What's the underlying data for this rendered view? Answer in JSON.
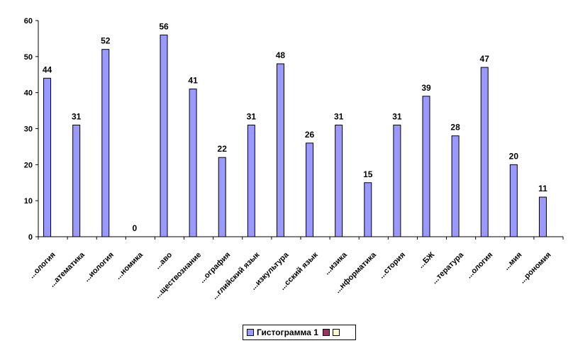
{
  "chart_data": {
    "type": "bar",
    "categories": [
      "...ология",
      "...атематика",
      "...иология",
      "...номика",
      "...аво",
      "...ществознание",
      "...ография",
      "...глийский язык",
      "...изкультура",
      "...сский язык",
      "...изика",
      "...нформатика",
      "...стория",
      "...БЖ",
      "...тература",
      "...ология",
      "...мия",
      "...рономия"
    ],
    "series": [
      {
        "name": "Гистограмма 1",
        "values": [
          44,
          31,
          52,
          0,
          56,
          41,
          22,
          31,
          48,
          26,
          31,
          15,
          31,
          39,
          28,
          47,
          20,
          11
        ],
        "color": "#9999ff"
      }
    ],
    "ylim": [
      0,
      60
    ],
    "yticks": [
      0,
      10,
      20,
      30,
      40,
      50,
      60
    ],
    "grid": false,
    "legend_position": "bottom",
    "legend_extra_swatches": [
      "#993366",
      "#ffffcc"
    ]
  }
}
